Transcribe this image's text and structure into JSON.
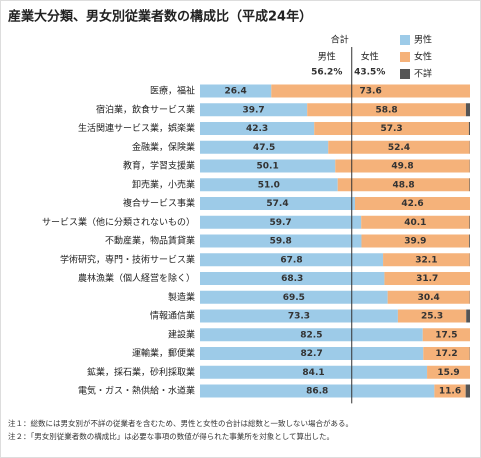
{
  "chart_data": {
    "type": "stacked-bar-horizontal",
    "title": "産業大分類、男女別従業者数の構成比（平成24年）",
    "categories": [
      "医療，福祉",
      "宿泊業，飲食サービス業",
      "生活関連サービス業，娯楽業",
      "金融業，保険業",
      "教育，学習支援業",
      "卸売業，小売業",
      "複合サービス事業",
      "サービス業（他に分類されないもの）",
      "不動産業，物品賃貸業",
      "学術研究，専門・技術サービス業",
      "農林漁業（個人経営を除く）",
      "製造業",
      "情報通信業",
      "建設業",
      "運輸業，郵便業",
      "鉱業，採石業，砂利採取業",
      "電気・ガス・熱供給・水道業"
    ],
    "series": [
      {
        "name": "男性",
        "color": "#9dcbe8",
        "values": [
          26.4,
          39.7,
          42.3,
          47.5,
          50.1,
          51.0,
          57.4,
          59.7,
          59.8,
          67.8,
          68.3,
          69.5,
          73.3,
          82.5,
          82.7,
          84.1,
          86.8
        ],
        "value_labels": [
          "26.4",
          "39.7",
          "42.3",
          "47.5",
          "50.1",
          "51.0",
          "57.4",
          "59.7",
          "59.8",
          "67.8",
          "68.3",
          "69.5",
          "73.3",
          "82.5",
          "82.7",
          "84.1",
          "86.8"
        ]
      },
      {
        "name": "女性",
        "color": "#f5b27a",
        "values": [
          73.6,
          58.8,
          57.3,
          52.4,
          49.8,
          48.8,
          42.6,
          40.1,
          39.9,
          32.1,
          31.7,
          30.4,
          25.3,
          17.5,
          17.2,
          15.9,
          11.6
        ],
        "value_labels": [
          "73.6",
          "58.8",
          "57.3",
          "52.4",
          "49.8",
          "48.8",
          "42.6",
          "40.1",
          "39.9",
          "32.1",
          "31.7",
          "30.4",
          "25.3",
          "17.5",
          "17.2",
          "15.9",
          "11.6"
        ]
      },
      {
        "name": "不詳",
        "color": "#555555",
        "values": [
          0,
          1.5,
          0.4,
          0.1,
          0.1,
          0.2,
          0,
          0.2,
          0.3,
          0.1,
          0,
          0.1,
          1.4,
          0,
          0.1,
          0,
          1.6
        ]
      }
    ],
    "xlim": [
      0,
      100
    ],
    "total": {
      "label": "合計",
      "values": [
        56.2,
        43.5
      ],
      "value_labels": [
        "56.2%",
        "43.5%"
      ]
    },
    "notes": [
      "注１：総数には男女別が不詳の従業者を含むため、男性と女性の合計は総数と一致しない場合がある。",
      "注２：「男女別従業者数の構成比」は必要な事項の数値が得られた事業所を対象として算出した。"
    ]
  }
}
